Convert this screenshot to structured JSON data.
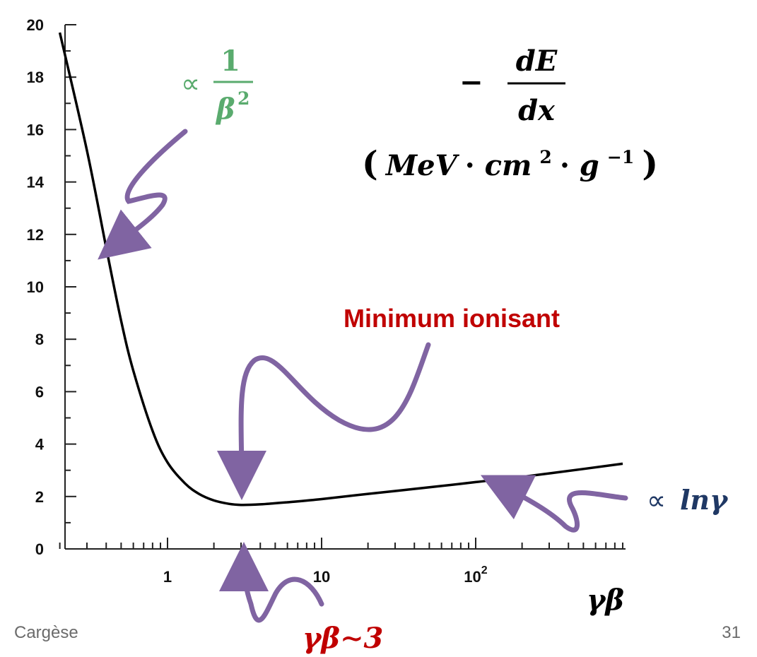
{
  "chart_data": {
    "type": "line",
    "x_scale": "log",
    "xlabel": "γβ",
    "ylabel": "-dE/dx (MeV·cm²·g⁻¹)",
    "xlim": [
      0.2,
      900
    ],
    "ylim": [
      0,
      20
    ],
    "x_tick_labels": [
      "1",
      "10",
      "10²"
    ],
    "x_tick_values": [
      1,
      10,
      100
    ],
    "y_tick_values": [
      0,
      2,
      4,
      6,
      8,
      10,
      12,
      14,
      16,
      18,
      20
    ],
    "y_tick_labels": [
      "0",
      "2",
      "4",
      "6",
      "8",
      "10",
      "12",
      "14",
      "16",
      "18",
      "20"
    ],
    "grid": false,
    "series": [
      {
        "color": "#000000",
        "x": [
          0.2,
          0.3,
          0.4,
          0.5,
          0.6,
          0.8,
          1.0,
          1.3,
          1.6,
          2.0,
          2.5,
          3.0,
          4.0,
          6.0,
          10,
          20,
          50,
          100,
          200,
          500,
          900
        ],
        "y": [
          19.7,
          15.2,
          11.5,
          8.7,
          6.8,
          4.5,
          3.3,
          2.5,
          2.1,
          1.85,
          1.72,
          1.68,
          1.7,
          1.78,
          1.9,
          2.1,
          2.35,
          2.55,
          2.75,
          3.05,
          3.25
        ]
      }
    ]
  },
  "annotations": {
    "proportional_symbol": "∝",
    "beta_numerator": "1",
    "beta_denominator": "β",
    "beta_exponent": "2",
    "dedx_minus": "−",
    "dedx_numerator": "dE",
    "dedx_denominator": "dx",
    "dedx_units_open": "(",
    "dedx_units_mev": "MeV",
    "dedx_units_dot1": " · ",
    "dedx_units_cm": "cm",
    "dedx_units_cm_exp": "2",
    "dedx_units_dot2": " · ",
    "dedx_units_g": "g",
    "dedx_units_g_exp": "−1",
    "dedx_units_close": ")",
    "minimum_label": "Minimum ionisant",
    "ln_gamma": "lnγ",
    "gammabeta_label": "γβ",
    "gammabeta_approx": "γβ∼3"
  },
  "footer": {
    "location": "Cargèse",
    "page_number": "31"
  },
  "colors": {
    "arrow": "#8064a2",
    "green": "#5aab6e",
    "red": "#c00000",
    "blue": "#1f3864",
    "curve": "#000000"
  }
}
